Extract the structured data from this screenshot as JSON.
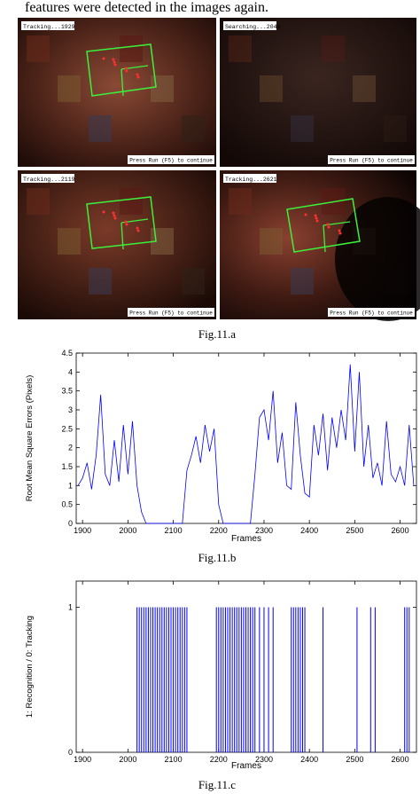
{
  "text": "features were detected in the images again.",
  "figure_a": {
    "panels": [
      {
        "label": "Tracking...1929",
        "hint": "Press Run (F5) to continue"
      },
      {
        "label": "Searching...2046",
        "hint": "Press Run (F5) to continue"
      },
      {
        "label": "Tracking...2119",
        "hint": "Press Run (F5) to continue"
      },
      {
        "label": "Tracking...2621",
        "hint": "Press Run (F5) to continue"
      }
    ],
    "caption": "Fig.11.a"
  },
  "chart_data": [
    {
      "type": "line",
      "color": "#0000ff",
      "xlabel": "Frames",
      "ylabel": "Root Mean Square Errors (Pixels)",
      "caption": "Fig.11.b",
      "xlim": [
        1886,
        2636
      ],
      "ylim": [
        0,
        4.5
      ],
      "xticks": [
        1900,
        2000,
        2100,
        2200,
        2300,
        2400,
        2500,
        2600
      ],
      "yticks": [
        0,
        0.5,
        1,
        1.5,
        2,
        2.5,
        3,
        3.5,
        4,
        4.5
      ],
      "x": [
        1890,
        1900,
        1910,
        1920,
        1930,
        1940,
        1950,
        1960,
        1970,
        1980,
        1990,
        2000,
        2010,
        2020,
        2030,
        2040,
        2050,
        2060,
        2070,
        2080,
        2090,
        2100,
        2110,
        2120,
        2130,
        2140,
        2150,
        2160,
        2170,
        2180,
        2190,
        2200,
        2210,
        2220,
        2230,
        2240,
        2250,
        2260,
        2270,
        2280,
        2290,
        2300,
        2310,
        2320,
        2330,
        2340,
        2350,
        2360,
        2370,
        2380,
        2390,
        2400,
        2410,
        2420,
        2430,
        2440,
        2450,
        2460,
        2470,
        2480,
        2490,
        2500,
        2510,
        2520,
        2530,
        2540,
        2550,
        2560,
        2570,
        2580,
        2590,
        2600,
        2610,
        2620,
        2630
      ],
      "values": [
        1.0,
        1.2,
        1.6,
        0.9,
        1.8,
        3.4,
        1.3,
        1.0,
        2.2,
        1.1,
        2.6,
        1.3,
        2.7,
        1.0,
        0.3,
        0,
        0,
        0,
        0,
        0,
        0,
        0,
        0,
        0,
        1.4,
        1.8,
        2.3,
        1.6,
        2.6,
        1.9,
        2.5,
        0.5,
        0,
        0,
        0,
        0,
        0,
        0,
        0,
        1.3,
        2.8,
        3.0,
        2.2,
        3.5,
        1.6,
        2.4,
        1.0,
        0.9,
        3.2,
        1.8,
        0.8,
        0.7,
        2.6,
        1.8,
        2.9,
        1.4,
        2.8,
        2.0,
        3.0,
        2.2,
        4.2,
        1.9,
        4.0,
        1.5,
        2.6,
        1.2,
        1.6,
        1.0,
        2.7,
        1.3,
        1.1,
        1.5,
        1.0,
        2.6,
        1.0
      ]
    },
    {
      "type": "bar",
      "color": "#0000ff",
      "xlabel": "Frames",
      "ylabel": "1: Recognition / 0: Tracking",
      "caption": "Fig.11.c",
      "xlim": [
        1886,
        2636
      ],
      "ylim": [
        0,
        1.18
      ],
      "xticks": [
        1900,
        2000,
        2100,
        2200,
        2300,
        2400,
        2500,
        2600
      ],
      "yticks": [
        0,
        1
      ],
      "x": [
        2020,
        2025,
        2030,
        2035,
        2040,
        2045,
        2050,
        2055,
        2060,
        2065,
        2070,
        2075,
        2080,
        2085,
        2090,
        2095,
        2100,
        2105,
        2110,
        2115,
        2120,
        2125,
        2130,
        2195,
        2200,
        2205,
        2210,
        2215,
        2220,
        2225,
        2230,
        2235,
        2240,
        2245,
        2250,
        2255,
        2260,
        2265,
        2270,
        2275,
        2280,
        2290,
        2300,
        2310,
        2320,
        2360,
        2365,
        2370,
        2375,
        2380,
        2385,
        2390,
        2430,
        2505,
        2535,
        2545,
        2610,
        2615,
        2620
      ],
      "values": [
        1,
        1,
        1,
        1,
        1,
        1,
        1,
        1,
        1,
        1,
        1,
        1,
        1,
        1,
        1,
        1,
        1,
        1,
        1,
        1,
        1,
        1,
        1,
        1,
        1,
        1,
        1,
        1,
        1,
        1,
        1,
        1,
        1,
        1,
        1,
        1,
        1,
        1,
        1,
        1,
        1,
        1,
        1,
        1,
        1,
        1,
        1,
        1,
        1,
        1,
        1,
        1,
        1,
        1,
        1,
        1,
        1,
        1,
        1
      ]
    }
  ]
}
